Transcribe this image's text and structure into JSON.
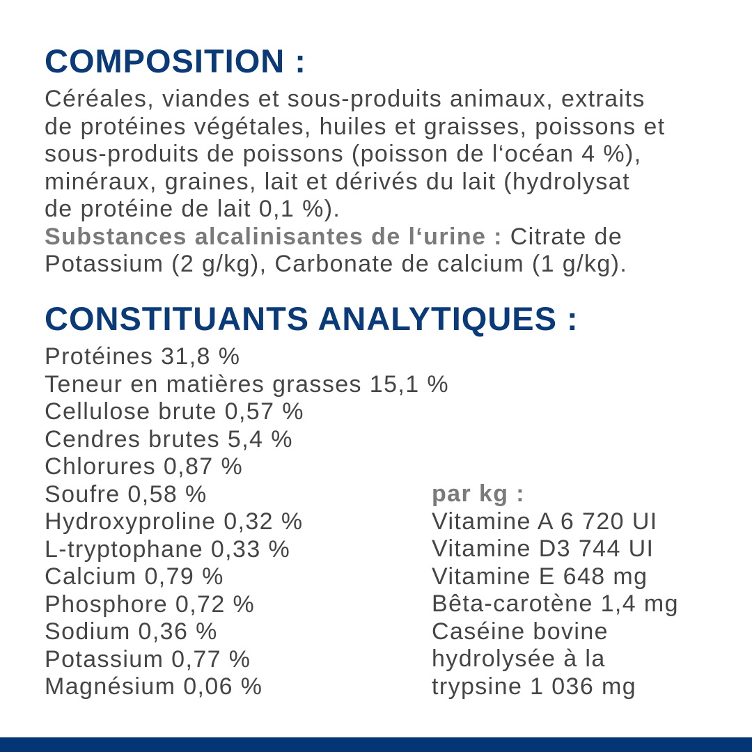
{
  "composition": {
    "title": "COMPOSITION :",
    "lines": [
      "Céréales, viandes et sous-produits animaux, extraits",
      "de protéines végétales, huiles et graisses, poissons et",
      "sous-produits de poissons (poisson de l‘océan 4 %),",
      "minéraux, graines, lait et dérivés du lait (hydrolysat",
      "de protéine de lait 0,1 %)."
    ],
    "alkalizing_label": "Substances alcalinisantes de l‘urine :",
    "alkalizing_text_1": " Citrate de",
    "alkalizing_text_2": "Potassium (2 g/kg), Carbonate de calcium (1 g/kg)."
  },
  "analytics": {
    "title": "CONSTITUANTS ANALYTIQUES :",
    "items": [
      "Protéines 31,8 %",
      "Teneur en matières grasses 15,1 %",
      "Cellulose brute 0,57 %",
      "Cendres brutes 5,4 %",
      "Chlorures 0,87 %",
      "Soufre 0,58 %",
      "Hydroxyproline 0,32 %",
      "L-tryptophane 0,33 %",
      "Calcium 0,79 %",
      "Phosphore 0,72 %",
      "Sodium 0,36 %",
      "Potassium 0,77 %",
      "Magnésium 0,06 %"
    ],
    "per_kg_label": "par kg :",
    "per_kg_items": [
      "Vitamine A 6 720 UI",
      "Vitamine D3 744 UI",
      "Vitamine E 648 mg",
      "Bêta-carotène 1,4 mg",
      "Caséine bovine",
      "hydrolysée à la",
      "trypsine 1 036 mg"
    ]
  },
  "colors": {
    "heading": "#0b3a78",
    "text": "#454545",
    "band": "#043574"
  }
}
